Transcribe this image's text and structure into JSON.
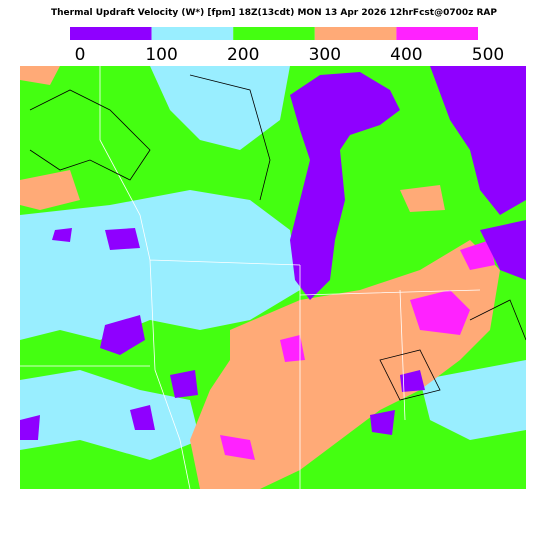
{
  "title": "Thermal Updraft Velocity (W*) [fpm] 18Z(13cdt) MON 13 Apr 2026 12hrFcst@0700z RAP",
  "colorbar": {
    "ticks": [
      0,
      100,
      200,
      300,
      400,
      500
    ],
    "colors": [
      "#8f00ff",
      "#99eeff",
      "#44ff11",
      "#ffaa77",
      "#ff22ff"
    ]
  }
}
